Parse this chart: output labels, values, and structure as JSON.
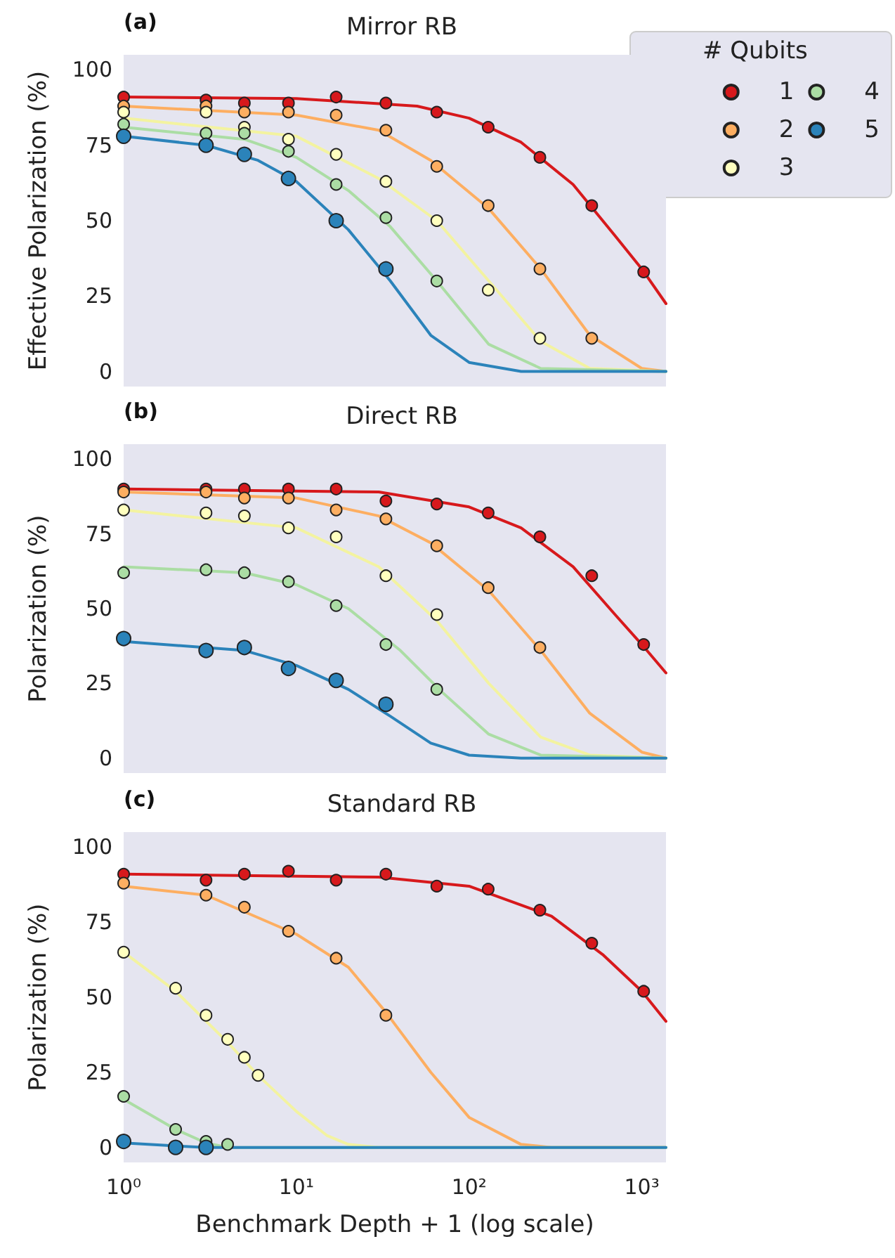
{
  "chart_data": [
    {
      "type": "scatter",
      "title": "Mirror RB",
      "ylabel": "Effective Polarization (%)",
      "annotations": [
        "(a)"
      ],
      "legend_title": "# Qubits",
      "legend": "top right",
      "grid": false,
      "log": "x",
      "tick_labels": "y",
      "xlim": [
        1,
        1380
      ],
      "ylim": [
        -5,
        105
      ],
      "yticks": [
        0,
        25,
        50,
        75,
        100
      ],
      "series": [
        {
          "name": "1",
          "color": "#d7191c",
          "marker": "circle",
          "x": [
            1,
            3,
            5,
            9,
            17,
            33,
            65,
            129,
            257,
            513,
            1025
          ],
          "values": [
            91,
            90,
            89,
            89,
            91,
            89,
            86,
            81,
            71,
            55,
            33
          ]
        },
        {
          "name": "2",
          "color": "#fdae61",
          "marker": "circle",
          "x": [
            1,
            3,
            5,
            9,
            17,
            33,
            65,
            129,
            257,
            513
          ],
          "values": [
            88,
            88,
            86,
            86,
            85,
            80,
            68,
            55,
            34,
            11
          ]
        },
        {
          "name": "3",
          "color": "#ffffbf",
          "marker": "circle",
          "x": [
            1,
            3,
            5,
            9,
            17,
            33,
            65,
            129,
            257
          ],
          "values": [
            86,
            86,
            81,
            77,
            72,
            63,
            50,
            27,
            11
          ]
        },
        {
          "name": "4",
          "color": "#abdda4",
          "marker": "circle",
          "x": [
            1,
            3,
            5,
            9,
            17,
            33,
            65
          ],
          "values": [
            82,
            79,
            79,
            73,
            62,
            51,
            30
          ]
        },
        {
          "name": "5",
          "color": "#2b83ba",
          "marker": "circle",
          "x": [
            1,
            3,
            5,
            9,
            17,
            33
          ],
          "values": [
            78,
            75,
            72,
            64,
            50,
            34
          ]
        },
        {
          "type": "line",
          "color": "#d7191c",
          "marker": "none",
          "x": [
            1,
            10,
            50,
            100,
            200,
            400,
            700,
            1000,
            1380
          ],
          "values": [
            91,
            90.5,
            88,
            84,
            76,
            62,
            45,
            34,
            22.5
          ]
        },
        {
          "type": "line",
          "color": "#fdae61",
          "marker": "none",
          "x": [
            1,
            10,
            30,
            60,
            130,
            260,
            500,
            1000,
            1380
          ],
          "values": [
            88,
            85,
            80,
            70,
            54,
            34,
            12,
            1,
            0
          ]
        },
        {
          "type": "line",
          "color": "#f3f3a0",
          "marker": "none",
          "x": [
            1,
            10,
            30,
            65,
            130,
            260,
            500,
            1380
          ],
          "values": [
            84,
            78,
            64,
            50,
            30,
            10,
            1,
            0
          ]
        },
        {
          "type": "line",
          "color": "#abdda4",
          "marker": "none",
          "x": [
            1,
            5,
            10,
            20,
            35,
            65,
            130,
            260,
            1380
          ],
          "values": [
            81,
            77,
            71,
            60,
            48,
            30,
            9,
            1,
            0
          ]
        },
        {
          "type": "line",
          "color": "#2b83ba",
          "marker": "none",
          "x": [
            1,
            3,
            6,
            10,
            20,
            35,
            60,
            100,
            200,
            1380
          ],
          "values": [
            78,
            75,
            70,
            63,
            47,
            30,
            12,
            3,
            0,
            0
          ]
        }
      ]
    },
    {
      "type": "scatter",
      "title": "Direct RB",
      "ylabel": "Polarization (%)",
      "annotations": [
        "(b)"
      ],
      "grid": false,
      "log": "x",
      "tick_labels": "y",
      "xlim": [
        1,
        1380
      ],
      "ylim": [
        -5,
        105
      ],
      "yticks": [
        0,
        25,
        50,
        75,
        100
      ],
      "series": [
        {
          "color": "#d7191c",
          "marker": "circle",
          "x": [
            1,
            3,
            5,
            9,
            17,
            33,
            65,
            129,
            257,
            513,
            1025
          ],
          "values": [
            90,
            90,
            90,
            90,
            90,
            86,
            85,
            82,
            74,
            61,
            38
          ]
        },
        {
          "color": "#fdae61",
          "marker": "circle",
          "x": [
            1,
            3,
            5,
            9,
            17,
            33,
            65,
            129,
            257
          ],
          "values": [
            89,
            89,
            87,
            87,
            83,
            80,
            71,
            57,
            37
          ]
        },
        {
          "color": "#ffffbf",
          "marker": "circle",
          "x": [
            1,
            3,
            5,
            9,
            17,
            33,
            65
          ],
          "values": [
            83,
            82,
            81,
            77,
            74,
            61,
            48
          ]
        },
        {
          "color": "#abdda4",
          "marker": "circle",
          "x": [
            1,
            3,
            5,
            9,
            17,
            33,
            65
          ],
          "values": [
            62,
            63,
            62,
            59,
            51,
            38,
            23
          ]
        },
        {
          "color": "#2b83ba",
          "marker": "circle",
          "x": [
            1,
            3,
            5,
            9,
            17,
            33
          ],
          "values": [
            40,
            36,
            37,
            30,
            26,
            18
          ]
        },
        {
          "type": "line",
          "color": "#d7191c",
          "marker": "none",
          "x": [
            1,
            30,
            100,
            200,
            400,
            700,
            1000,
            1380
          ],
          "values": [
            90,
            89,
            84,
            77,
            64,
            48,
            38,
            28.5
          ]
        },
        {
          "type": "line",
          "color": "#fdae61",
          "marker": "none",
          "x": [
            1,
            10,
            30,
            60,
            130,
            260,
            500,
            1000,
            1380
          ],
          "values": [
            89,
            87,
            81,
            72,
            56,
            36,
            15,
            2,
            0
          ]
        },
        {
          "type": "line",
          "color": "#f3f3a0",
          "marker": "none",
          "x": [
            1,
            10,
            30,
            65,
            130,
            260,
            500,
            1380
          ],
          "values": [
            83,
            77,
            64,
            46,
            25,
            7,
            1,
            0
          ]
        },
        {
          "type": "line",
          "color": "#abdda4",
          "marker": "none",
          "x": [
            1,
            5,
            10,
            20,
            40,
            70,
            130,
            260,
            1380
          ],
          "values": [
            64,
            62,
            58,
            50,
            36,
            22,
            8,
            1,
            0
          ]
        },
        {
          "type": "line",
          "color": "#2b83ba",
          "marker": "none",
          "x": [
            1,
            5,
            10,
            20,
            35,
            60,
            100,
            200,
            1380
          ],
          "values": [
            39,
            36,
            31,
            23,
            14,
            5,
            1,
            0,
            0
          ]
        }
      ]
    },
    {
      "type": "scatter",
      "title": "Standard RB",
      "xlabel": "Benchmark Depth + 1 (log scale)",
      "ylabel": "Polarization (%)",
      "annotations": [
        "(c)"
      ],
      "grid": false,
      "log": "x",
      "xlim": [
        1,
        1380
      ],
      "xticks": [
        {
          "value": 1,
          "label": "10⁰"
        },
        {
          "value": 10,
          "label": "10¹"
        },
        {
          "value": 100,
          "label": "10²"
        },
        {
          "value": 1000,
          "label": "10³"
        }
      ],
      "ylim": [
        -5,
        105
      ],
      "yticks": [
        0,
        25,
        50,
        75,
        100
      ],
      "series": [
        {
          "color": "#d7191c",
          "marker": "circle",
          "x": [
            1,
            3,
            5,
            9,
            17,
            33,
            65,
            129,
            257,
            513,
            1025
          ],
          "values": [
            91,
            89,
            91,
            92,
            89,
            91,
            87,
            86,
            79,
            68,
            52
          ]
        },
        {
          "color": "#fdae61",
          "marker": "circle",
          "x": [
            1,
            3,
            5,
            9,
            17,
            33
          ],
          "values": [
            88,
            84,
            80,
            72,
            63,
            44
          ]
        },
        {
          "color": "#ffffbf",
          "marker": "circle",
          "x": [
            1,
            2,
            3,
            4,
            5,
            6
          ],
          "values": [
            65,
            53,
            44,
            36,
            30,
            24
          ]
        },
        {
          "color": "#abdda4",
          "marker": "circle",
          "x": [
            1,
            2,
            3,
            4
          ],
          "values": [
            17,
            6,
            2,
            1
          ]
        },
        {
          "color": "#2b83ba",
          "marker": "circle",
          "x": [
            1,
            2,
            3
          ],
          "values": [
            2,
            0,
            0
          ]
        },
        {
          "type": "line",
          "color": "#d7191c",
          "marker": "none",
          "x": [
            1,
            30,
            100,
            300,
            600,
            1000,
            1380
          ],
          "values": [
            91,
            90,
            87,
            77,
            64,
            52,
            42
          ]
        },
        {
          "type": "line",
          "color": "#fdae61",
          "marker": "none",
          "x": [
            1,
            3,
            10,
            20,
            33,
            60,
            100,
            200,
            300,
            1380
          ],
          "values": [
            87,
            84,
            71,
            60,
            45,
            25,
            10,
            1,
            0,
            0
          ]
        },
        {
          "type": "line",
          "color": "#f3f3a0",
          "marker": "none",
          "x": [
            1,
            2,
            4,
            6,
            10,
            15,
            20,
            30,
            1380
          ],
          "values": [
            65,
            52,
            35,
            24,
            12,
            4,
            1,
            0,
            0
          ]
        },
        {
          "type": "line",
          "color": "#abdda4",
          "marker": "none",
          "x": [
            1,
            2,
            3,
            4,
            1380
          ],
          "values": [
            16,
            6,
            1.5,
            0,
            0
          ]
        },
        {
          "type": "line",
          "color": "#2b83ba",
          "marker": "none",
          "x": [
            1,
            2,
            3,
            1380
          ],
          "values": [
            1.5,
            0.5,
            0,
            0
          ]
        }
      ]
    }
  ]
}
